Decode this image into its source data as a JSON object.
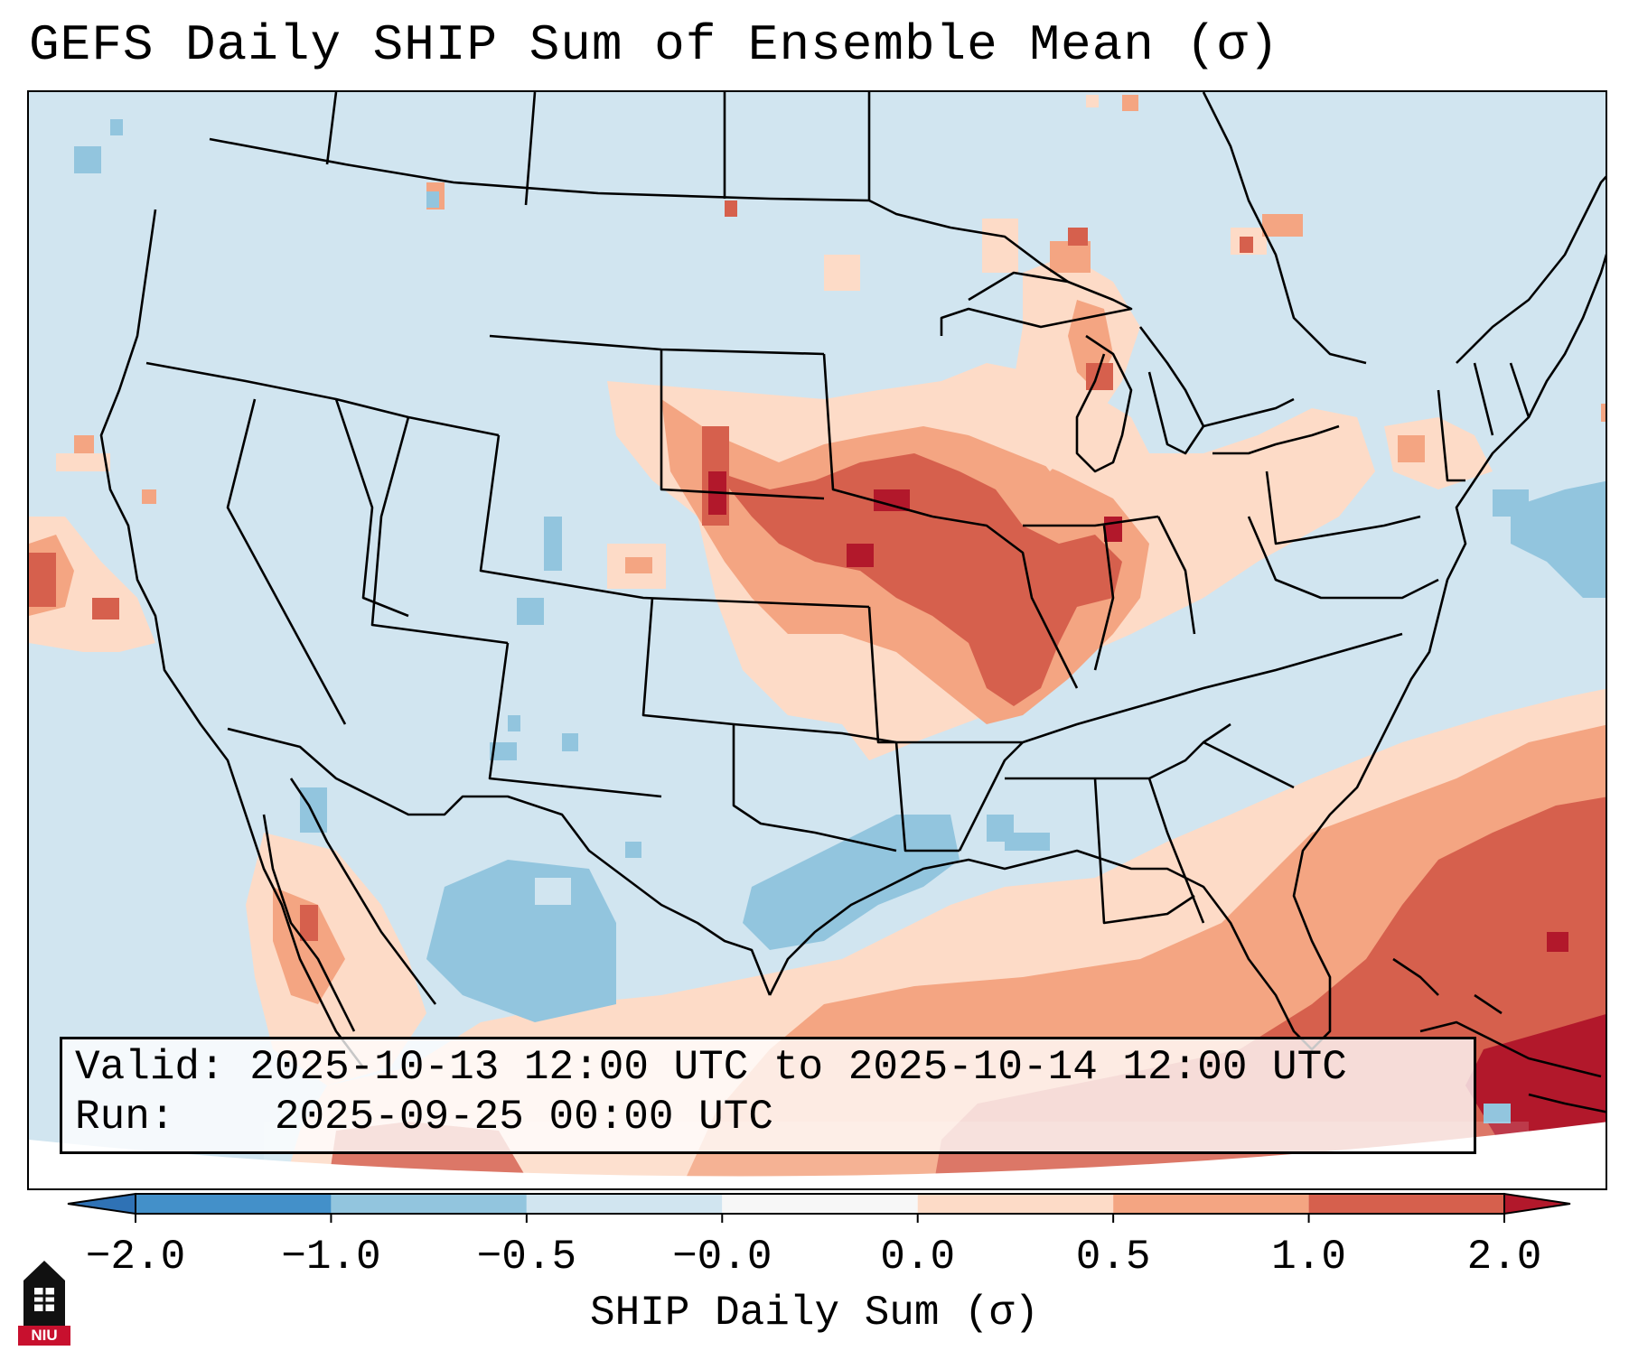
{
  "title": "GEFS Daily SHIP Sum of Ensemble Mean (σ)",
  "info": {
    "valid_label": "Valid:",
    "valid_value": "2025-10-13 12:00 UTC to 2025-10-14 12:00 UTC",
    "run_label": "Run:",
    "run_value": "2025-09-25 00:00 UTC"
  },
  "colorbar": {
    "label": "SHIP Daily Sum (σ)",
    "ticks": [
      "−2.0",
      "−1.0",
      "−0.5",
      "−0.0",
      "0.0",
      "0.5",
      "1.0",
      "2.0"
    ],
    "bins": [
      {
        "range": "< -2.0",
        "color": "#2f72b5"
      },
      {
        "range": "-2.0 to -1.0",
        "color": "#4390c9"
      },
      {
        "range": "-1.0 to -0.5",
        "color": "#92c5de"
      },
      {
        "range": "-0.5 to -0.0",
        "color": "#d1e5f0"
      },
      {
        "range": "-0.0 to 0.0",
        "color": "#f7f7f7"
      },
      {
        "range": "0.0 to 0.5",
        "color": "#fddbc7"
      },
      {
        "range": "0.5 to 1.0",
        "color": "#f4a582"
      },
      {
        "range": "1.0 to 2.0",
        "color": "#d6604d"
      },
      {
        "range": "> 2.0",
        "color": "#b2182b"
      }
    ]
  },
  "logo": {
    "text": "NIU"
  }
}
